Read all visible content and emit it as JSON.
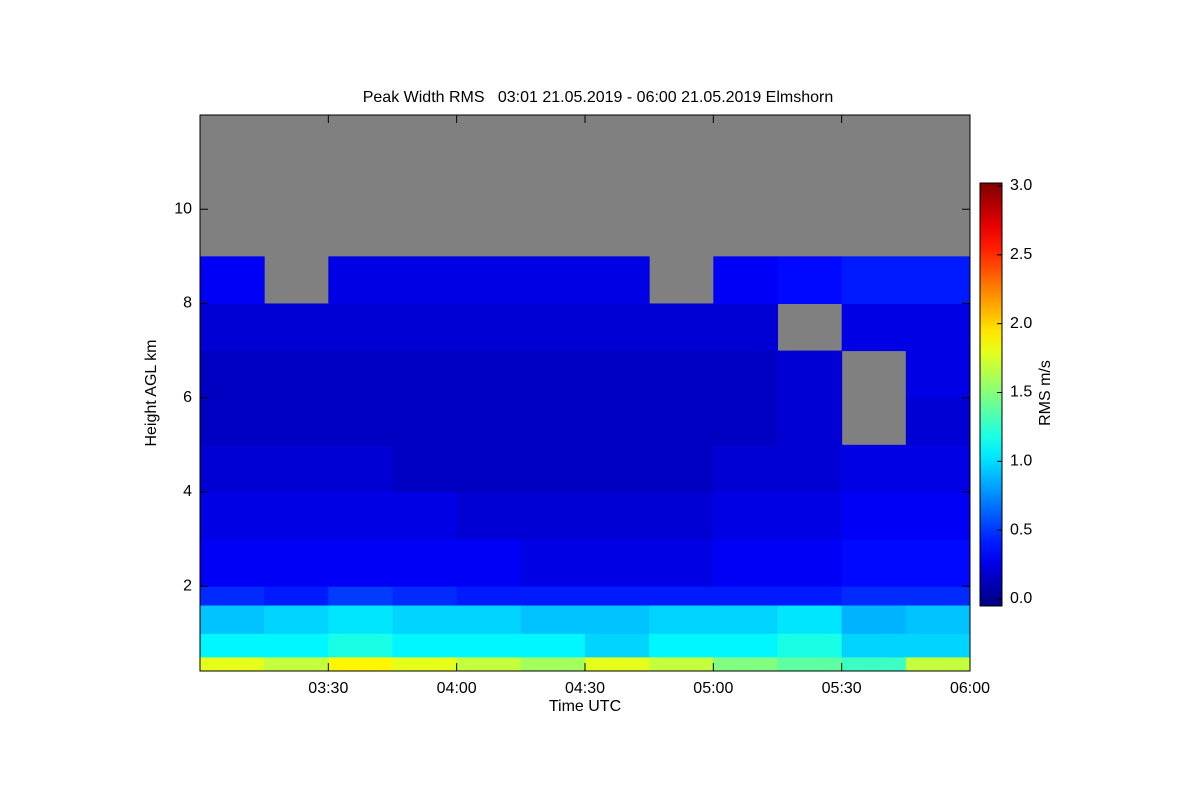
{
  "chart_data": {
    "type": "heatmap",
    "title": "Peak Width RMS   03:01 21.05.2019 - 06:00 21.05.2019 Elmshorn",
    "x_label": "Time UTC",
    "y_label": "Height AGL km",
    "colorbar_label": "RMS m/s",
    "colormap": "jet",
    "missing_color": "#808080",
    "xlim": [
      3.0,
      6.0
    ],
    "xticks": [
      {
        "value": 3.5,
        "label": "03:30"
      },
      {
        "value": 4.0,
        "label": "04:00"
      },
      {
        "value": 4.5,
        "label": "04:30"
      },
      {
        "value": 5.0,
        "label": "05:00"
      },
      {
        "value": 5.5,
        "label": "05:30"
      },
      {
        "value": 6.0,
        "label": "06:00"
      }
    ],
    "ylim": [
      0.2,
      12
    ],
    "yticks": [
      2,
      4,
      6,
      8,
      10
    ],
    "clim": [
      0,
      3
    ],
    "cticks": [
      {
        "value": 0,
        "label": "0.0"
      },
      {
        "value": 0.5,
        "label": "0.5"
      },
      {
        "value": 1,
        "label": "1.0"
      },
      {
        "value": 1.5,
        "label": "1.5"
      },
      {
        "value": 2,
        "label": "2.0"
      },
      {
        "value": 2.5,
        "label": "2.5"
      },
      {
        "value": 3,
        "label": "3.0"
      }
    ],
    "x_bins": [
      3.0,
      3.25,
      3.5,
      3.75,
      4.0,
      4.25,
      4.5,
      4.75,
      5.0,
      5.25,
      5.5,
      5.75,
      6.0
    ],
    "y_bins": [
      0.2,
      0.5,
      1.0,
      1.6,
      2,
      3,
      4,
      5,
      6,
      7,
      8,
      9,
      10,
      12
    ],
    "z": [
      [
        1.8,
        1.7,
        1.9,
        1.8,
        1.7,
        1.6,
        1.8,
        1.7,
        1.5,
        1.4,
        1.3,
        1.7
      ],
      [
        1.1,
        1.1,
        1.2,
        1.1,
        1.1,
        1.1,
        1.0,
        1.1,
        1.1,
        1.2,
        1.0,
        1.0
      ],
      [
        0.95,
        1.0,
        1.05,
        1.0,
        1.0,
        0.95,
        0.95,
        1.0,
        1.0,
        1.05,
        0.9,
        0.95
      ],
      [
        0.5,
        0.45,
        0.55,
        0.5,
        0.45,
        0.45,
        0.45,
        0.45,
        0.45,
        0.45,
        0.5,
        0.5
      ],
      [
        0.35,
        0.35,
        0.35,
        0.35,
        0.35,
        0.3,
        0.3,
        0.3,
        0.35,
        0.35,
        0.4,
        0.4
      ],
      [
        0.3,
        0.3,
        0.3,
        0.3,
        0.25,
        0.25,
        0.25,
        0.25,
        0.3,
        0.3,
        0.35,
        0.35
      ],
      [
        0.25,
        0.25,
        0.25,
        0.2,
        0.2,
        0.2,
        0.2,
        0.2,
        0.25,
        0.25,
        0.3,
        0.3
      ],
      [
        0.2,
        0.2,
        0.2,
        0.2,
        0.2,
        0.2,
        0.2,
        0.2,
        0.2,
        0.25,
        null,
        0.25
      ],
      [
        0.2,
        0.2,
        0.2,
        0.2,
        0.2,
        0.2,
        0.2,
        0.2,
        0.2,
        0.25,
        null,
        0.3
      ],
      [
        0.25,
        0.25,
        0.25,
        0.25,
        0.25,
        0.25,
        0.25,
        0.25,
        0.25,
        null,
        0.3,
        0.3
      ],
      [
        0.35,
        null,
        0.3,
        0.3,
        0.3,
        0.3,
        0.3,
        null,
        0.35,
        0.4,
        0.45,
        0.45
      ],
      [
        null,
        null,
        null,
        null,
        null,
        null,
        null,
        null,
        null,
        null,
        null,
        null
      ],
      [
        null,
        null,
        null,
        null,
        null,
        null,
        null,
        null,
        null,
        null,
        null,
        null
      ]
    ]
  }
}
